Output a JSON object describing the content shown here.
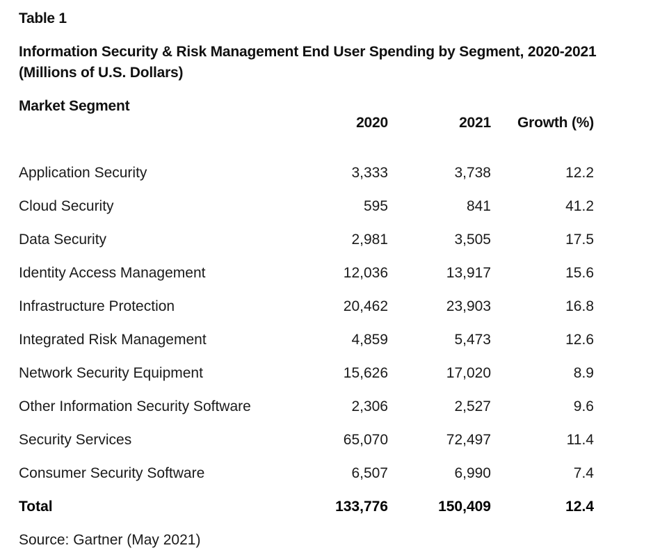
{
  "table_label": "Table 1",
  "title": {
    "line1": "Information Security & Risk Management End User Spending by Segment, 2020-2021",
    "line2": "(Millions of U.S. Dollars)"
  },
  "segment_header": "Market Segment",
  "columns": {
    "y2020": "2020",
    "y2021": "2021",
    "growth": "Growth (%)"
  },
  "rows": [
    {
      "segment": "Application Security",
      "y2020": "3,333",
      "y2021": "3,738",
      "growth": "12.2"
    },
    {
      "segment": "Cloud Security",
      "y2020": "595",
      "y2021": "841",
      "growth": "41.2"
    },
    {
      "segment": "Data Security",
      "y2020": "2,981",
      "y2021": "3,505",
      "growth": "17.5"
    },
    {
      "segment": "Identity Access Management",
      "y2020": "12,036",
      "y2021": "13,917",
      "growth": "15.6"
    },
    {
      "segment": "Infrastructure Protection",
      "y2020": "20,462",
      "y2021": "23,903",
      "growth": "16.8"
    },
    {
      "segment": "Integrated Risk Management",
      "y2020": "4,859",
      "y2021": "5,473",
      "growth": "12.6"
    },
    {
      "segment": "Network Security Equipment",
      "y2020": "15,626",
      "y2021": "17,020",
      "growth": "8.9"
    },
    {
      "segment": "Other Information Security Software",
      "y2020": "2,306",
      "y2021": "2,527",
      "growth": "9.6"
    },
    {
      "segment": "Security Services",
      "y2020": "65,070",
      "y2021": "72,497",
      "growth": "11.4"
    },
    {
      "segment": "Consumer Security Software",
      "y2020": "6,507",
      "y2021": "6,990",
      "growth": "7.4"
    }
  ],
  "total": {
    "segment": "Total",
    "y2020": "133,776",
    "y2021": "150,409",
    "growth": "12.4"
  },
  "source": "Source: Gartner (May 2021)"
}
